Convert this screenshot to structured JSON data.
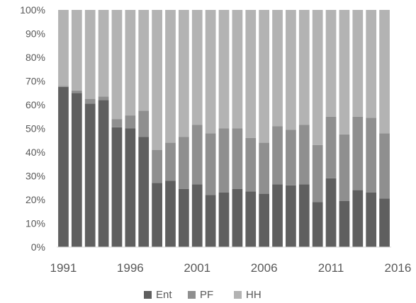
{
  "chart_data": {
    "type": "bar",
    "stacked": true,
    "normalized": true,
    "title": "",
    "xlabel": "",
    "ylabel": "",
    "ylim": [
      0,
      100
    ],
    "y_ticks": [
      "0%",
      "10%",
      "20%",
      "30%",
      "40%",
      "50%",
      "60%",
      "70%",
      "80%",
      "90%",
      "100%"
    ],
    "x_tick_labels": [
      "1991",
      "1996",
      "2001",
      "2006",
      "2011",
      "2016"
    ],
    "x_tick_years": [
      1991,
      1996,
      2001,
      2006,
      2011,
      2016
    ],
    "categories": [
      1991,
      1992,
      1993,
      1994,
      1995,
      1996,
      1997,
      1998,
      1999,
      2000,
      2001,
      2002,
      2003,
      2004,
      2005,
      2006,
      2007,
      2008,
      2009,
      2010,
      2011,
      2012,
      2013,
      2014,
      2015
    ],
    "grid": false,
    "legend_position": "bottom",
    "series": [
      {
        "name": "Ent",
        "color": "#5f5f5f",
        "values": [
          67.5,
          65,
          60.5,
          62,
          50.5,
          50,
          46.5,
          27,
          28,
          24.5,
          26.5,
          22,
          23,
          24.5,
          23.5,
          22.5,
          26.5,
          26,
          26.5,
          19,
          29,
          19.5,
          24,
          23,
          20.5
        ]
      },
      {
        "name": "PF",
        "color": "#8f8f8f",
        "values": [
          0.5,
          1,
          2,
          1.5,
          3.5,
          5.5,
          11,
          14,
          16,
          22,
          25,
          26,
          27,
          25.5,
          22.5,
          21.5,
          24.5,
          23.5,
          25,
          24,
          26,
          28,
          31,
          31.5,
          27.5
        ]
      },
      {
        "name": "HH",
        "color": "#b3b3b3",
        "values": [
          32,
          34,
          37.5,
          36.5,
          46,
          44.5,
          42.5,
          59,
          56,
          53.5,
          48.5,
          52,
          50,
          50,
          54,
          56,
          49,
          50.5,
          48.5,
          57,
          45,
          52.5,
          45,
          45.5,
          52
        ]
      }
    ]
  }
}
